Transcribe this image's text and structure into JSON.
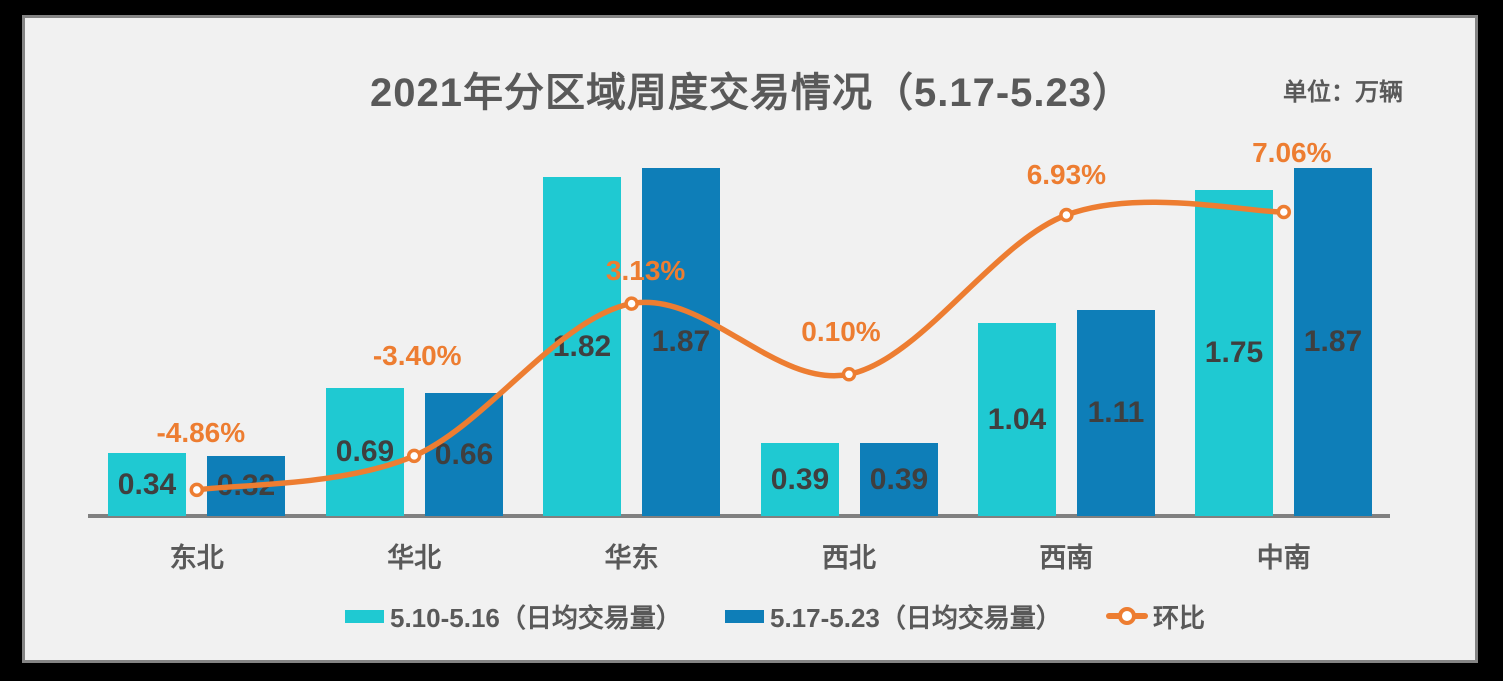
{
  "header": {
    "title": "2021年分区域周度交易情况（5.17-5.23）",
    "unit_label": "单位：万辆"
  },
  "colors": {
    "series1": "#1fc9d2",
    "series2": "#0e7eb8",
    "line": "#ed7d31",
    "axis": "#808080",
    "panel_background": "#f1f1f1",
    "outer_background": "#000000",
    "title_text": "#595959",
    "value_text": "#3f3f3f"
  },
  "chart_data": {
    "type": "bar",
    "subtype": "grouped bars with secondary-axis line (combo)",
    "title": "2021年分区域周度交易情况（5.17-5.23）",
    "unit": "万辆",
    "categories": [
      "东北",
      "华北",
      "华东",
      "西北",
      "西南",
      "中南"
    ],
    "series": [
      {
        "name": "5.10-5.16（日均交易量）",
        "type": "bar",
        "color": "#1fc9d2",
        "values": [
          0.34,
          0.69,
          1.82,
          0.39,
          1.04,
          1.75
        ]
      },
      {
        "name": "5.17-5.23（日均交易量）",
        "type": "bar",
        "color": "#0e7eb8",
        "values": [
          0.32,
          0.66,
          1.87,
          0.39,
          1.11,
          1.87
        ]
      },
      {
        "name": "环比",
        "type": "line",
        "color": "#ed7d31",
        "values": [
          -4.86,
          -3.4,
          3.13,
          0.1,
          6.93,
          7.06
        ],
        "labels": [
          "-4.86%",
          "-3.40%",
          "3.13%",
          "0.10%",
          "6.93%",
          "7.06%"
        ]
      }
    ],
    "xlabel": "",
    "ylabel": "",
    "grid": false,
    "legend_position": "bottom",
    "data_labels": "bar values centered inside bars; line percentages above markers"
  },
  "legend": {
    "items": [
      {
        "label": "5.10-5.16（日均交易量）",
        "swatch": "cyan-bar"
      },
      {
        "label": "5.17-5.23（日均交易量）",
        "swatch": "blue-bar"
      },
      {
        "label": "环比",
        "swatch": "orange-line-marker"
      }
    ]
  }
}
